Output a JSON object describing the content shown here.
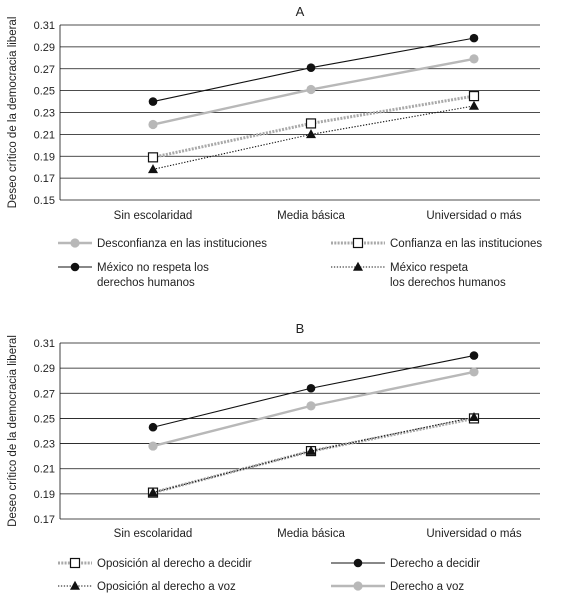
{
  "chart_data": [
    {
      "type": "line",
      "title": "A",
      "xlabel": "",
      "ylabel": "Deseo crítico de la democracia liberal",
      "categories": [
        "Sin escolaridad",
        "Media básica",
        "Universidad o más"
      ],
      "ylim": [
        0.15,
        0.31
      ],
      "yticks": [
        "0.15",
        "0.17",
        "0.19",
        "0.21",
        "0.23",
        "0.25",
        "0.27",
        "0.29",
        "0.31"
      ],
      "grid": "horizontal",
      "legend_position": "bottom",
      "series": [
        {
          "name": "Desconfianza en las instituciones",
          "values": [
            0.219,
            0.251,
            0.279
          ],
          "color": "#b8b8b8",
          "marker": "circle-gray",
          "line": "thick-gray"
        },
        {
          "name": "Confianza en las instituciones",
          "values": [
            0.189,
            0.22,
            0.245
          ],
          "color": "#a9a9a9",
          "marker": "square-open",
          "line": "dashed-thick-gray"
        },
        {
          "name": "México no respeta los derechos humanos",
          "values": [
            0.24,
            0.271,
            0.298
          ],
          "color": "#111111",
          "marker": "circle-black",
          "line": "thin-black"
        },
        {
          "name": "México respeta los derechos humanos",
          "values": [
            0.178,
            0.21,
            0.236
          ],
          "color": "#111111",
          "marker": "triangle-black",
          "line": "dotted-black"
        }
      ],
      "legend_rows": [
        [
          [
            "Desconfianza en las instituciones"
          ],
          [
            "Confianza en las instituciones"
          ]
        ],
        [
          [
            "México no respeta los",
            "derechos humanos"
          ],
          [
            "México respeta",
            "los derechos humanos"
          ]
        ]
      ]
    },
    {
      "type": "line",
      "title": "B",
      "xlabel": "",
      "ylabel": "Deseo crítico de la democracia liberal",
      "categories": [
        "Sin escolaridad",
        "Media básica",
        "Universidad o más"
      ],
      "ylim": [
        0.17,
        0.31
      ],
      "yticks": [
        "0.17",
        "0.19",
        "0.21",
        "0.23",
        "0.25",
        "0.27",
        "0.29",
        "0.31"
      ],
      "grid": "horizontal",
      "legend_position": "bottom",
      "series": [
        {
          "name": "Oposición al derecho a decidir",
          "values": [
            0.191,
            0.224,
            0.25
          ],
          "color": "#a9a9a9",
          "marker": "square-open",
          "line": "dashed-thick-gray"
        },
        {
          "name": "Derecho a decidir",
          "values": [
            0.243,
            0.274,
            0.3
          ],
          "color": "#111111",
          "marker": "circle-black",
          "line": "thin-black"
        },
        {
          "name": "Oposición al derecho a voz",
          "values": [
            0.191,
            0.224,
            0.251
          ],
          "color": "#111111",
          "marker": "triangle-black",
          "line": "dotted-black"
        },
        {
          "name": "Derecho a voz",
          "values": [
            0.228,
            0.26,
            0.287
          ],
          "color": "#b8b8b8",
          "marker": "circle-gray",
          "line": "thick-gray"
        }
      ],
      "legend_rows": [
        [
          [
            "Oposición al derecho a decidir"
          ],
          [
            "Derecho a decidir"
          ]
        ],
        [
          [
            "Oposición al derecho a voz"
          ],
          [
            "Derecho a voz"
          ]
        ]
      ]
    }
  ]
}
